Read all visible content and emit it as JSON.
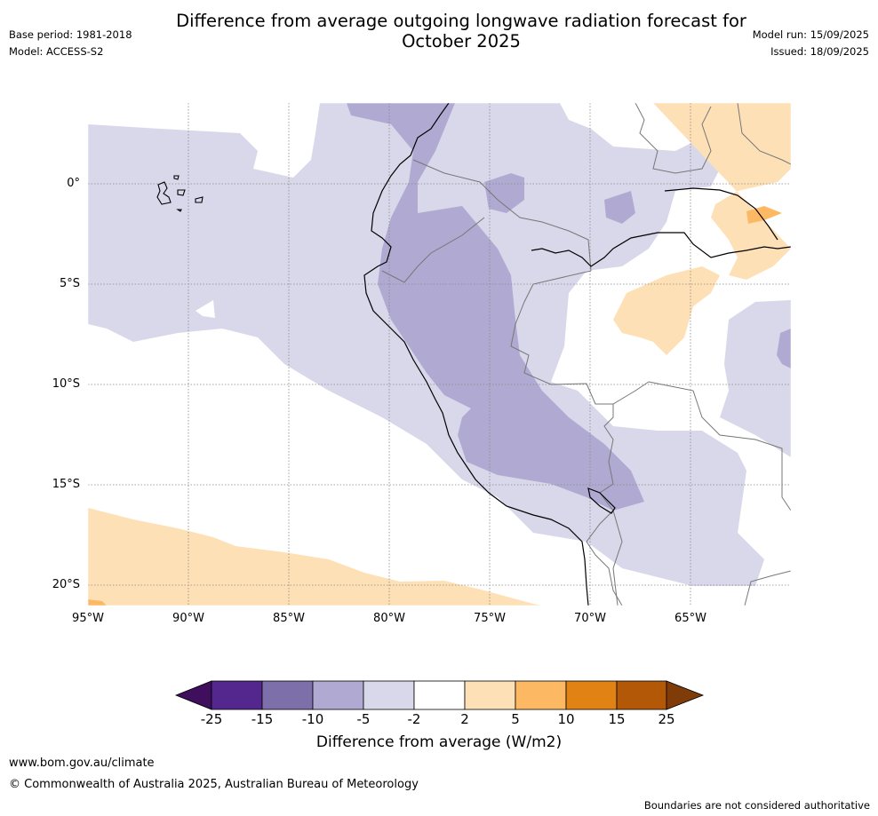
{
  "title": {
    "line1": "Difference from average outgoing longwave radiation forecast for",
    "line2": "October 2025"
  },
  "meta": {
    "base_period": "Base period: 1981-2018",
    "model": "Model: ACCESS-S2",
    "model_run": "Model run: 15/09/2025",
    "issued": "Issued: 18/09/2025"
  },
  "axes": {
    "lat_labels": [
      "0°",
      "5°S",
      "10°S",
      "15°S",
      "20°S"
    ],
    "lon_labels": [
      "95°W",
      "90°W",
      "85°W",
      "80°W",
      "75°W",
      "70°W",
      "65°W"
    ]
  },
  "colorbar": {
    "title": "Difference from average (W/m2)",
    "tick_labels": [
      "-25",
      "-15",
      "-10",
      "-5",
      "-2",
      "2",
      "5",
      "10",
      "15",
      "25"
    ],
    "colors": [
      "#3f0e5c",
      "#54278f",
      "#7d6fa9",
      "#b0aad2",
      "#d8d8ea",
      "#ffffff",
      "#fee0b6",
      "#fdb863",
      "#e08214",
      "#b35806",
      "#7f3b08"
    ]
  },
  "footer": {
    "url": "www.bom.gov.au/climate",
    "copyright": "© Commonwealth of Australia 2025, Australian Bureau of Meteorology",
    "disclaimer": "Boundaries are not considered authoritative"
  }
}
